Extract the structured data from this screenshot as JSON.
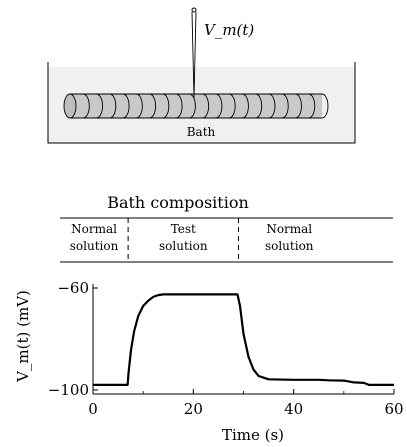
{
  "schematic": {
    "electrode_label": "V_m(t)",
    "bath_label": "Bath"
  },
  "composition": {
    "title": "Bath composition",
    "segments": [
      {
        "line1": "Normal",
        "line2": "solution",
        "start": 0,
        "end": 7
      },
      {
        "line1": "Test",
        "line2": "solution",
        "start": 7,
        "end": 29
      },
      {
        "line1": "Normal",
        "line2": "solution",
        "start": 29,
        "end": 60
      }
    ]
  },
  "chart_data": {
    "type": "line",
    "title": "",
    "xlabel": "Time (s)",
    "ylabel": "V_m(t) (mV)",
    "xlim": [
      0,
      60
    ],
    "ylim": [
      -100,
      -60
    ],
    "xticks": [
      0,
      20,
      40,
      60
    ],
    "yticks": [
      -60,
      -100
    ],
    "grid": false,
    "series": [
      {
        "x": [
          0,
          6.9,
          7.1,
          7.6,
          8.2,
          9,
          10,
          11,
          12,
          13,
          14,
          15,
          20,
          25,
          28.8,
          29.3,
          30,
          31,
          32,
          33,
          35,
          40,
          45,
          47,
          50,
          52,
          54,
          55,
          60
        ],
        "y": [
          -98,
          -98,
          -93,
          -84,
          -77,
          -71,
          -67,
          -65,
          -63.5,
          -62.8,
          -62.5,
          -62.5,
          -62.5,
          -62.5,
          -62.5,
          -67,
          -78,
          -87,
          -92,
          -94.5,
          -95.8,
          -96,
          -96,
          -96.2,
          -96.3,
          -97,
          -97.2,
          -98,
          -98
        ]
      }
    ]
  }
}
